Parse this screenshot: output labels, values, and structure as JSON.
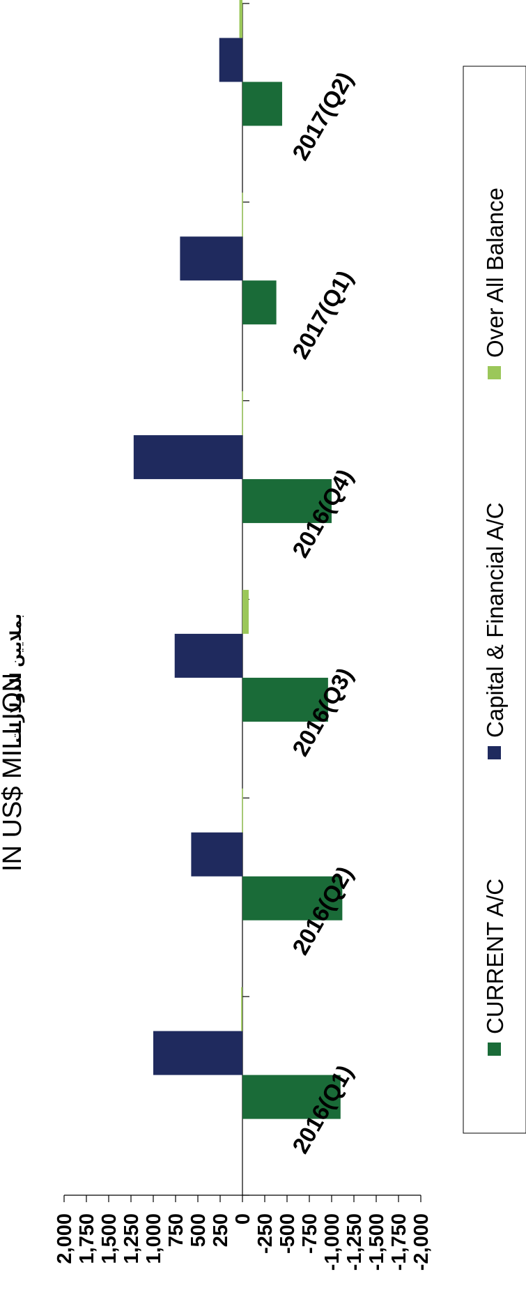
{
  "chart_data": {
    "type": "bar",
    "orientation": "rotated-90-clockwise",
    "title": "IN US$ MILLION",
    "subtitle": "بملايين الدولارات",
    "categories": [
      "2016(Q1)",
      "2016(Q2)",
      "2016(Q3)",
      "2016(Q4)",
      "2017(Q1)",
      "2017(Q2)"
    ],
    "series": [
      {
        "name": "CURRENT A/C",
        "color": "#1a6b38",
        "values": [
          -1100,
          -1120,
          -960,
          -1000,
          -380,
          -445
        ]
      },
      {
        "name": "Capital & Financial A/C",
        "color": "#1f2a5e",
        "values": [
          1000,
          575,
          760,
          1220,
          700,
          260
        ]
      },
      {
        "name": "Over All Balance",
        "color": "#9bc75a",
        "values": [
          15,
          5,
          -70,
          5,
          5,
          35
        ]
      }
    ],
    "value_axis": {
      "ylim": [
        -2000,
        2000
      ],
      "tick_labels": [
        "2,000",
        "1,750",
        "1,500",
        "1,250",
        "1,000",
        "750",
        "500",
        "250",
        "0",
        "-250",
        "-500",
        "-750",
        "-1,000",
        "-1,250",
        "-1,500",
        "-1,750",
        "-2,000"
      ]
    },
    "grid": false,
    "legend_position": "right"
  }
}
